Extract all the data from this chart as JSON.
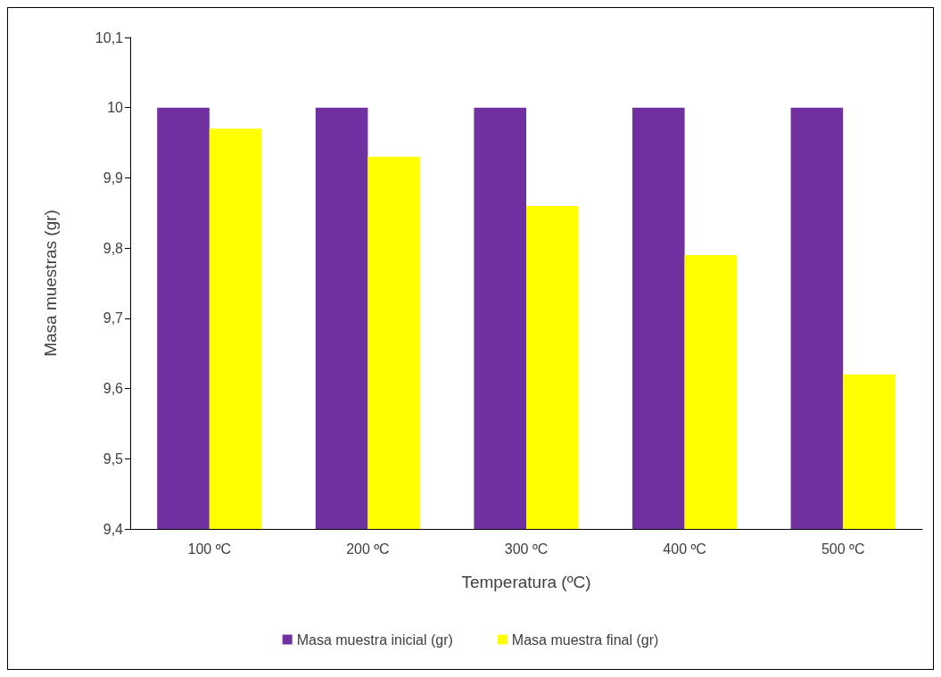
{
  "chart_data": {
    "type": "bar",
    "xlabel": "Temperatura (ºC)",
    "ylabel": "Masa muestras (gr)",
    "categories": [
      "100 ºC",
      "200 ºC",
      "300 ºC",
      "400 ºC",
      "500 ºC"
    ],
    "series": [
      {
        "name": "Masa muestra inicial (gr)",
        "color": "#7030a0",
        "values": [
          10,
          10,
          10,
          10,
          10
        ]
      },
      {
        "name": "Masa muestra final (gr)",
        "color": "#ffff00",
        "values": [
          9.97,
          9.93,
          9.86,
          9.79,
          9.62
        ]
      }
    ],
    "ylim": [
      9.4,
      10.1
    ],
    "yticks": [
      {
        "value": 9.4,
        "label": "9,4"
      },
      {
        "value": 9.5,
        "label": "9,5"
      },
      {
        "value": 9.6,
        "label": "9,6"
      },
      {
        "value": 9.7,
        "label": "9,7"
      },
      {
        "value": 9.8,
        "label": "9,8"
      },
      {
        "value": 9.9,
        "label": "9,9"
      },
      10,
      {
        "value": 10.1,
        "label": "10,1"
      }
    ],
    "grid": false,
    "legend": "bottom"
  }
}
